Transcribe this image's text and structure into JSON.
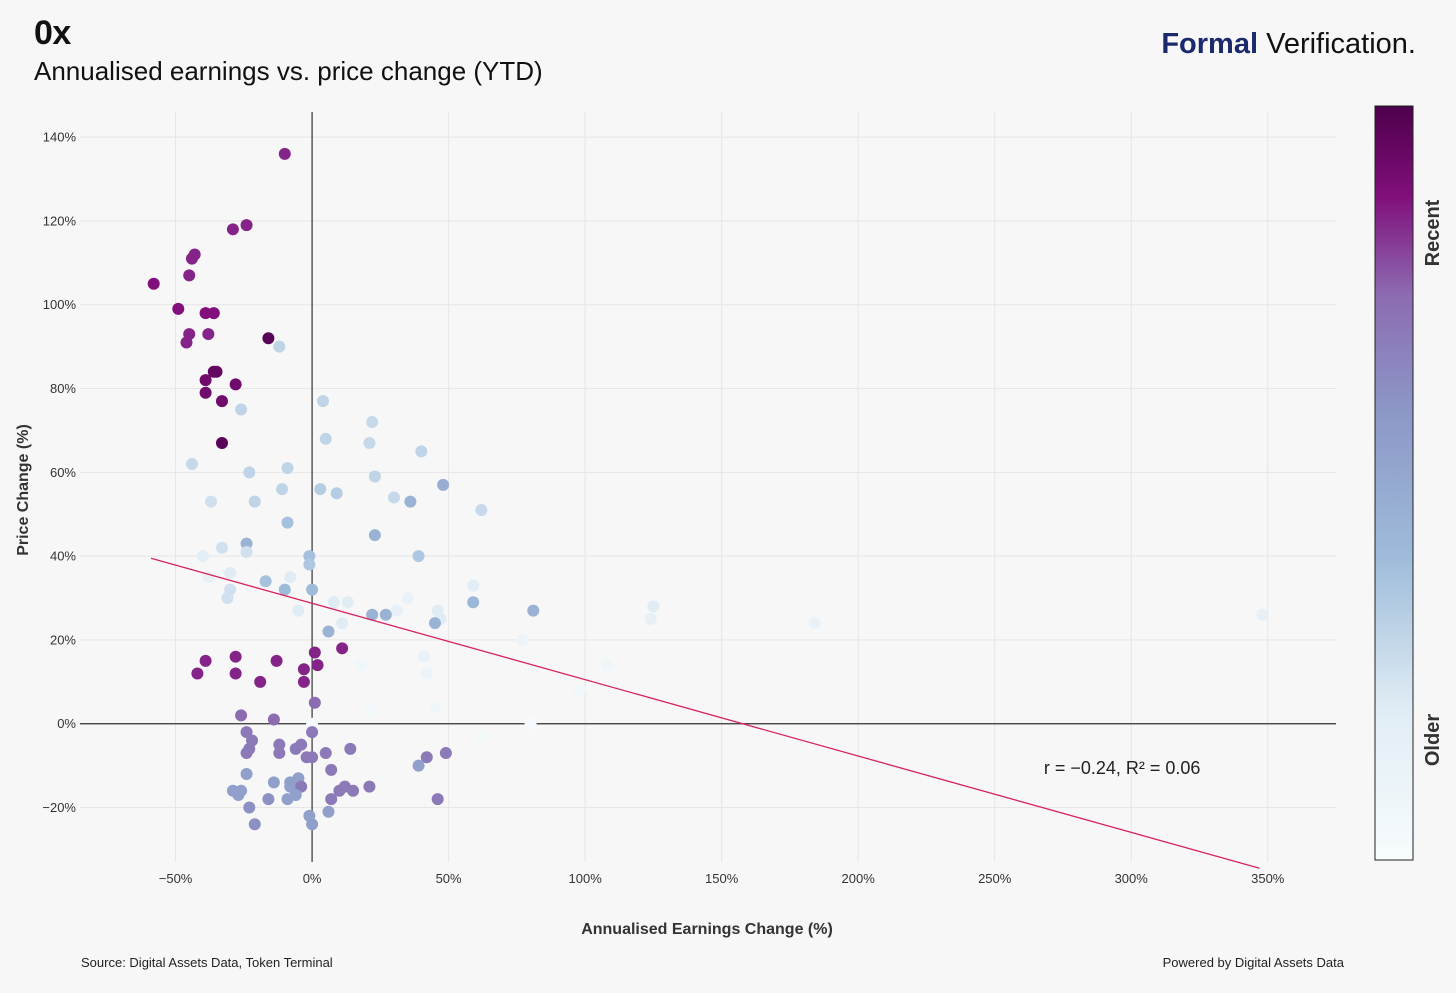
{
  "header": {
    "title": "0x",
    "subtitle": "Annualised earnings vs. price change (YTD)",
    "brand_bold": "Formal",
    "brand_rest": " Verification."
  },
  "footer": {
    "source": "Source: Digital Assets Data, Token Terminal",
    "powered": "Powered by Digital Assets Data"
  },
  "colorbar": {
    "top_label": "Recent",
    "bottom_label": "Older"
  },
  "chart_data": {
    "type": "scatter",
    "xlabel": "Annualised Earnings Change (%)",
    "ylabel": "Price Change (%)",
    "xlim": [
      -85,
      375
    ],
    "ylim": [
      -33,
      146
    ],
    "xticks": [
      -50,
      0,
      50,
      100,
      150,
      200,
      250,
      300,
      350
    ],
    "xtick_labels": [
      "−50%",
      "0%",
      "50%",
      "100%",
      "150%",
      "200%",
      "250%",
      "300%",
      "350%"
    ],
    "yticks": [
      -20,
      0,
      20,
      40,
      60,
      80,
      100,
      120,
      140
    ],
    "ytick_labels": [
      "−20%",
      "0%",
      "20%",
      "40%",
      "60%",
      "80%",
      "100%",
      "120%",
      "140%"
    ],
    "grid": true,
    "trendline": {
      "x": [
        -59,
        347
      ],
      "y": [
        39.5,
        -34.5
      ],
      "color": "#d6245e"
    },
    "annotation": {
      "x": 268,
      "y": -12,
      "text": "r = −0.24, R² = 0.06"
    },
    "colorscale": [
      "#f7fcfd",
      "#bfd3e6",
      "#8c96c6",
      "#88419d",
      "#810f7c",
      "#4d004b"
    ],
    "points": [
      {
        "x": -10,
        "y": 136,
        "t": 0.85
      },
      {
        "x": -29,
        "y": 118,
        "t": 0.85
      },
      {
        "x": -24,
        "y": 119,
        "t": 0.85
      },
      {
        "x": -44,
        "y": 111,
        "t": 0.85
      },
      {
        "x": -43,
        "y": 112,
        "t": 0.85
      },
      {
        "x": -45,
        "y": 107,
        "t": 0.85
      },
      {
        "x": -58,
        "y": 105,
        "t": 0.88
      },
      {
        "x": -49,
        "y": 99,
        "t": 0.88
      },
      {
        "x": -39,
        "y": 98,
        "t": 0.88
      },
      {
        "x": -36,
        "y": 98,
        "t": 0.88
      },
      {
        "x": -45,
        "y": 93,
        "t": 0.85
      },
      {
        "x": -38,
        "y": 93,
        "t": 0.85
      },
      {
        "x": -46,
        "y": 91,
        "t": 0.85
      },
      {
        "x": -16,
        "y": 92,
        "t": 0.97
      },
      {
        "x": -12,
        "y": 90,
        "t": 0.3
      },
      {
        "x": -36,
        "y": 84,
        "t": 0.95
      },
      {
        "x": -35,
        "y": 84,
        "t": 0.95
      },
      {
        "x": -39,
        "y": 82,
        "t": 0.92
      },
      {
        "x": -28,
        "y": 81,
        "t": 0.92
      },
      {
        "x": -39,
        "y": 79,
        "t": 0.92
      },
      {
        "x": -33,
        "y": 77,
        "t": 0.92
      },
      {
        "x": -33,
        "y": 67,
        "t": 0.97
      },
      {
        "x": 4,
        "y": 77,
        "t": 0.3
      },
      {
        "x": -26,
        "y": 75,
        "t": 0.3
      },
      {
        "x": 22,
        "y": 72,
        "t": 0.28
      },
      {
        "x": 5,
        "y": 68,
        "t": 0.3
      },
      {
        "x": 21,
        "y": 67,
        "t": 0.28
      },
      {
        "x": 40,
        "y": 65,
        "t": 0.3
      },
      {
        "x": -44,
        "y": 62,
        "t": 0.28
      },
      {
        "x": -9,
        "y": 61,
        "t": 0.3
      },
      {
        "x": -23,
        "y": 60,
        "t": 0.3
      },
      {
        "x": 23,
        "y": 59,
        "t": 0.3
      },
      {
        "x": 48,
        "y": 57,
        "t": 0.48
      },
      {
        "x": -11,
        "y": 56,
        "t": 0.3
      },
      {
        "x": 3,
        "y": 56,
        "t": 0.33
      },
      {
        "x": 9,
        "y": 55,
        "t": 0.33
      },
      {
        "x": 30,
        "y": 54,
        "t": 0.28
      },
      {
        "x": -37,
        "y": 53,
        "t": 0.25
      },
      {
        "x": -21,
        "y": 53,
        "t": 0.3
      },
      {
        "x": 36,
        "y": 53,
        "t": 0.45
      },
      {
        "x": 62,
        "y": 51,
        "t": 0.28
      },
      {
        "x": -9,
        "y": 48,
        "t": 0.38
      },
      {
        "x": 23,
        "y": 45,
        "t": 0.45
      },
      {
        "x": -24,
        "y": 43,
        "t": 0.45
      },
      {
        "x": -33,
        "y": 42,
        "t": 0.25
      },
      {
        "x": -24,
        "y": 41,
        "t": 0.25
      },
      {
        "x": -40,
        "y": 40,
        "t": 0.18
      },
      {
        "x": -1,
        "y": 40,
        "t": 0.38
      },
      {
        "x": 39,
        "y": 40,
        "t": 0.35
      },
      {
        "x": -1,
        "y": 38,
        "t": 0.35
      },
      {
        "x": -30,
        "y": 36,
        "t": 0.2
      },
      {
        "x": -38,
        "y": 35,
        "t": 0.15
      },
      {
        "x": -8,
        "y": 35,
        "t": 0.2
      },
      {
        "x": -17,
        "y": 34,
        "t": 0.38
      },
      {
        "x": 59,
        "y": 33,
        "t": 0.18
      },
      {
        "x": -10,
        "y": 32,
        "t": 0.4
      },
      {
        "x": 0,
        "y": 32,
        "t": 0.4
      },
      {
        "x": -30,
        "y": 32,
        "t": 0.25
      },
      {
        "x": -31,
        "y": 30,
        "t": 0.25
      },
      {
        "x": 35,
        "y": 30,
        "t": 0.12
      },
      {
        "x": 8,
        "y": 29,
        "t": 0.2
      },
      {
        "x": 13,
        "y": 29,
        "t": 0.2
      },
      {
        "x": 59,
        "y": 29,
        "t": 0.42
      },
      {
        "x": 125,
        "y": 28,
        "t": 0.2
      },
      {
        "x": -5,
        "y": 27,
        "t": 0.2
      },
      {
        "x": 31,
        "y": 27,
        "t": 0.15
      },
      {
        "x": 46,
        "y": 27,
        "t": 0.2
      },
      {
        "x": 81,
        "y": 27,
        "t": 0.45
      },
      {
        "x": 22,
        "y": 26,
        "t": 0.45
      },
      {
        "x": 27,
        "y": 26,
        "t": 0.45
      },
      {
        "x": 348,
        "y": 26,
        "t": 0.15
      },
      {
        "x": 47,
        "y": 25,
        "t": 0.2
      },
      {
        "x": 124,
        "y": 25,
        "t": 0.15
      },
      {
        "x": 11,
        "y": 24,
        "t": 0.2
      },
      {
        "x": 45,
        "y": 24,
        "t": 0.45
      },
      {
        "x": 184,
        "y": 24,
        "t": 0.12
      },
      {
        "x": 6,
        "y": 22,
        "t": 0.45
      },
      {
        "x": 77,
        "y": 20,
        "t": 0.1
      },
      {
        "x": 11,
        "y": 18,
        "t": 0.85
      },
      {
        "x": 1,
        "y": 17,
        "t": 0.85
      },
      {
        "x": 41,
        "y": 16,
        "t": 0.12
      },
      {
        "x": -28,
        "y": 16,
        "t": 0.85
      },
      {
        "x": -39,
        "y": 15,
        "t": 0.85
      },
      {
        "x": -13,
        "y": 15,
        "t": 0.85
      },
      {
        "x": 2,
        "y": 14,
        "t": 0.85
      },
      {
        "x": 18,
        "y": 14,
        "t": 0.06
      },
      {
        "x": 108,
        "y": 14,
        "t": 0.08
      },
      {
        "x": -3,
        "y": 13,
        "t": 0.85
      },
      {
        "x": -42,
        "y": 12,
        "t": 0.85
      },
      {
        "x": -28,
        "y": 12,
        "t": 0.85
      },
      {
        "x": 42,
        "y": 12,
        "t": 0.1
      },
      {
        "x": -19,
        "y": 10,
        "t": 0.85
      },
      {
        "x": -3,
        "y": 10,
        "t": 0.85
      },
      {
        "x": 98,
        "y": 8,
        "t": 0.06
      },
      {
        "x": 1,
        "y": 5,
        "t": 0.75
      },
      {
        "x": 45,
        "y": 4,
        "t": 0.08
      },
      {
        "x": 21,
        "y": 3,
        "t": 0.04
      },
      {
        "x": -26,
        "y": 2,
        "t": 0.75
      },
      {
        "x": -14,
        "y": 1,
        "t": 0.75
      },
      {
        "x": 0,
        "y": 0,
        "t": 0.02
      },
      {
        "x": 80,
        "y": 0,
        "t": 0.02
      },
      {
        "x": -24,
        "y": -2,
        "t": 0.7
      },
      {
        "x": 0,
        "y": -2,
        "t": 0.7
      },
      {
        "x": 62,
        "y": -3,
        "t": 0.04
      },
      {
        "x": -22,
        "y": -4,
        "t": 0.7
      },
      {
        "x": -12,
        "y": -5,
        "t": 0.7
      },
      {
        "x": -4,
        "y": -5,
        "t": 0.7
      },
      {
        "x": -6,
        "y": -6,
        "t": 0.7
      },
      {
        "x": 14,
        "y": -6,
        "t": 0.7
      },
      {
        "x": -23,
        "y": -6,
        "t": 0.7
      },
      {
        "x": -24,
        "y": -7,
        "t": 0.7
      },
      {
        "x": -12,
        "y": -7,
        "t": 0.7
      },
      {
        "x": 5,
        "y": -7,
        "t": 0.7
      },
      {
        "x": 49,
        "y": -7,
        "t": 0.7
      },
      {
        "x": -2,
        "y": -8,
        "t": 0.7
      },
      {
        "x": 0,
        "y": -8,
        "t": 0.7
      },
      {
        "x": 42,
        "y": -8,
        "t": 0.7
      },
      {
        "x": 39,
        "y": -10,
        "t": 0.55
      },
      {
        "x": 7,
        "y": -11,
        "t": 0.7
      },
      {
        "x": -24,
        "y": -12,
        "t": 0.55
      },
      {
        "x": -5,
        "y": -13,
        "t": 0.55
      },
      {
        "x": -14,
        "y": -14,
        "t": 0.55
      },
      {
        "x": -8,
        "y": -14,
        "t": 0.55
      },
      {
        "x": -8,
        "y": -15,
        "t": 0.55
      },
      {
        "x": -4,
        "y": -15,
        "t": 0.7
      },
      {
        "x": 12,
        "y": -15,
        "t": 0.7
      },
      {
        "x": 21,
        "y": -15,
        "t": 0.7
      },
      {
        "x": -29,
        "y": -16,
        "t": 0.55
      },
      {
        "x": -26,
        "y": -16,
        "t": 0.55
      },
      {
        "x": 10,
        "y": -16,
        "t": 0.7
      },
      {
        "x": 15,
        "y": -16,
        "t": 0.7
      },
      {
        "x": -27,
        "y": -17,
        "t": 0.55
      },
      {
        "x": -6,
        "y": -17,
        "t": 0.55
      },
      {
        "x": -16,
        "y": -18,
        "t": 0.62
      },
      {
        "x": -9,
        "y": -18,
        "t": 0.55
      },
      {
        "x": 7,
        "y": -18,
        "t": 0.7
      },
      {
        "x": 46,
        "y": -18,
        "t": 0.7
      },
      {
        "x": -23,
        "y": -20,
        "t": 0.62
      },
      {
        "x": 6,
        "y": -21,
        "t": 0.55
      },
      {
        "x": -1,
        "y": -22,
        "t": 0.55
      },
      {
        "x": -21,
        "y": -24,
        "t": 0.62
      },
      {
        "x": 0,
        "y": -24,
        "t": 0.55
      }
    ]
  }
}
